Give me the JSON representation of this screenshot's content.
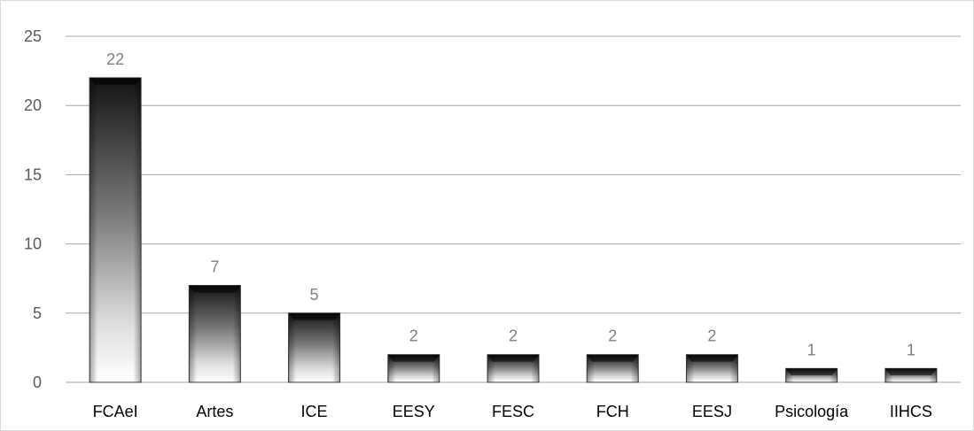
{
  "chart_data": {
    "type": "bar",
    "title": "",
    "xlabel": "",
    "ylabel": "",
    "categories": [
      "FCAeI",
      "Artes",
      "ICE",
      "EESY",
      "FESC",
      "FCH",
      "EESJ",
      "Psicología",
      "IIHCS"
    ],
    "values": [
      22,
      7,
      5,
      2,
      2,
      2,
      2,
      1,
      1
    ],
    "ylim": [
      0,
      25
    ],
    "yticks": [
      "0",
      "5",
      "10",
      "15",
      "20",
      "25"
    ],
    "grid": true,
    "legend": "none",
    "colors": {
      "grid": "#a6a6a6",
      "bar_dark": "#1a1a1a",
      "bar_light": "#ffffff",
      "data_label": "#7f7f7f"
    }
  }
}
